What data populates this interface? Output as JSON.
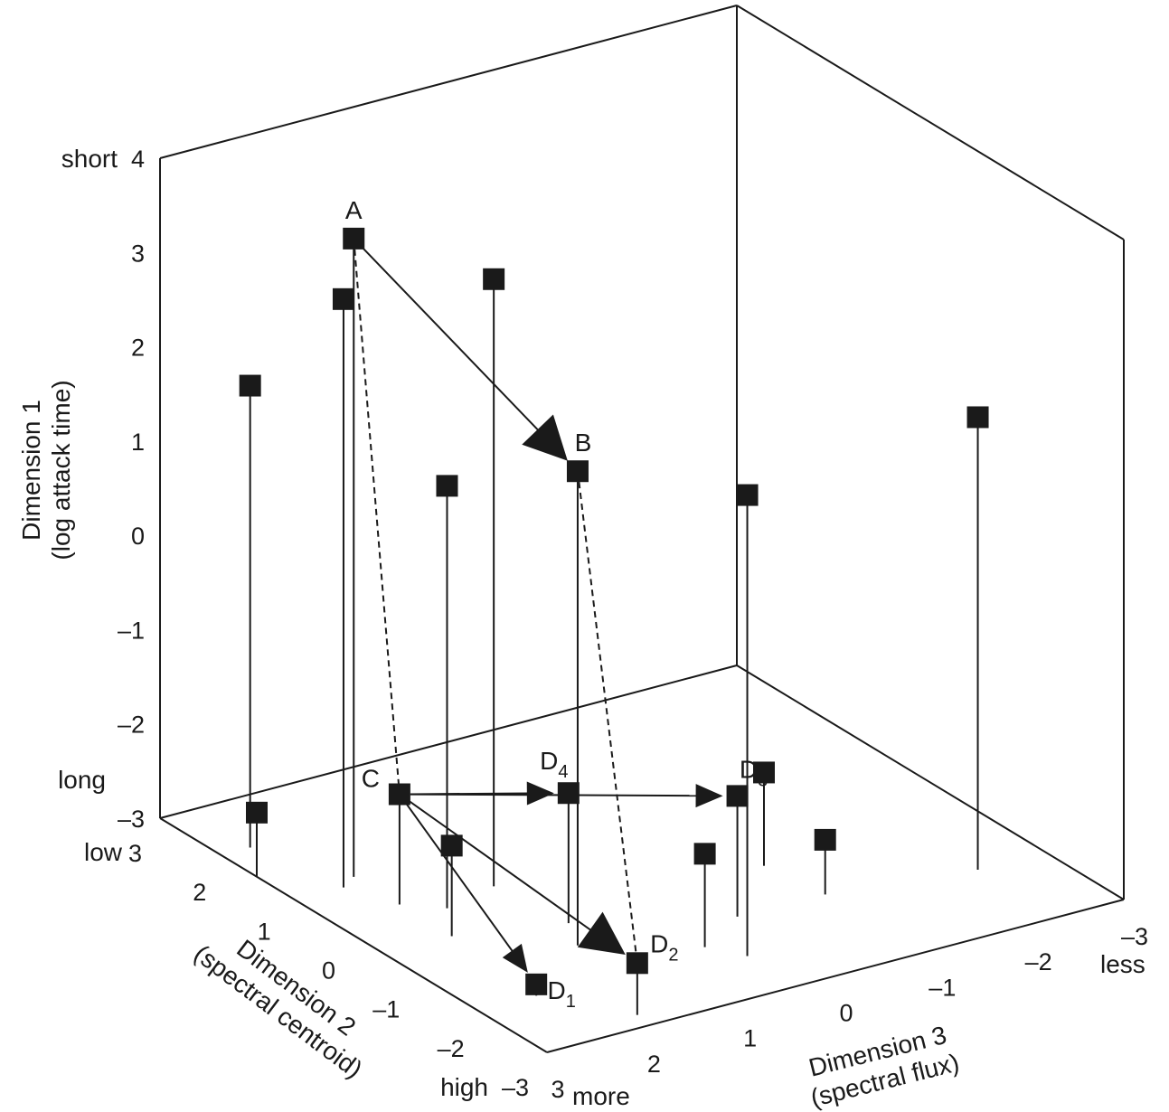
{
  "chart_data": {
    "type": "scatter",
    "projection": "3d",
    "grid": false,
    "axes": {
      "dim1": {
        "label_line1": "Dimension 1",
        "label_line2": "(log attack time)",
        "range": [
          -3,
          4
        ],
        "ticks": [
          "4",
          "3",
          "2",
          "1",
          "0",
          "–1",
          "–2",
          "–3"
        ],
        "end_high": "short",
        "end_low": "long"
      },
      "dim2": {
        "label_line1": "Dimension 2",
        "label_line2": "(spectral centroid)",
        "range": [
          -3,
          3
        ],
        "ticks": [
          "3",
          "2",
          "1",
          "0",
          "–1",
          "–2",
          "–3"
        ],
        "end_high": "low",
        "end_low": "high"
      },
      "dim3": {
        "label_line1": "Dimension 3",
        "label_line2": "(spectral flux)",
        "range": [
          -3,
          3
        ],
        "ticks": [
          "3",
          "2",
          "1",
          "0",
          "–1",
          "–2",
          "–3"
        ],
        "end_high": "more",
        "end_low": "less"
      }
    },
    "points": [
      {
        "label": "A",
        "sub": "",
        "dim1": 3.77,
        "dim2": 1.04,
        "dim3": 2.3
      },
      {
        "label": "B",
        "sub": "",
        "dim1": 2.03,
        "dim2": -1.24,
        "dim3": 1.5
      },
      {
        "label": "C",
        "sub": "",
        "dim1": -1.83,
        "dim2": 0.33,
        "dim3": 2.3
      },
      {
        "label": "D",
        "sub": "1",
        "dim1": -2.88,
        "dim2": -1.94,
        "dim3": 2.4
      },
      {
        "label": "D",
        "sub": "2",
        "dim1": -2.45,
        "dim2": -2.76,
        "dim3": 1.9
      },
      {
        "label": "D",
        "sub": "3",
        "dim1": -1.72,
        "dim2": -1.48,
        "dim3": 0.0
      },
      {
        "label": "D",
        "sub": "4",
        "dim1": -1.62,
        "dim2": -0.8,
        "dim3": 1.3
      },
      {
        "label": "",
        "sub": "",
        "dim1": 3.24,
        "dim2": 0.9,
        "dim3": 2.5
      },
      {
        "label": "",
        "sub": "",
        "dim1": 3.44,
        "dim2": 0.21,
        "dim3": 1.4
      },
      {
        "label": "",
        "sub": "",
        "dim1": 1.9,
        "dim2": 2.05,
        "dim3": 2.7
      },
      {
        "label": "",
        "sub": "",
        "dim1": 1.48,
        "dim2": 0.04,
        "dim3": 2.0
      },
      {
        "label": "",
        "sub": "",
        "dim1": 1.89,
        "dim2": -2.23,
        "dim3": 0.4
      },
      {
        "label": "",
        "sub": "",
        "dim1": 1.8,
        "dim2": -1.78,
        "dim3": -2.3
      },
      {
        "label": "",
        "sub": "",
        "dim1": -2.32,
        "dim2": 1.5,
        "dim3": 3.0
      },
      {
        "label": "",
        "sub": "",
        "dim1": -2.04,
        "dim2": -0.48,
        "dim3": 2.3
      },
      {
        "label": "",
        "sub": "",
        "dim1": -2.01,
        "dim2": -1.87,
        "dim3": 0.6
      },
      {
        "label": "",
        "sub": "",
        "dim1": -2.01,
        "dim2": -0.7,
        "dim3": -0.8
      },
      {
        "label": "",
        "sub": "",
        "dim1": -2.42,
        "dim2": -1.5,
        "dim3": -0.9
      }
    ],
    "arrows": [
      {
        "from": 0,
        "to": 1,
        "style": "solid",
        "head": "large"
      },
      {
        "from": 2,
        "to": 3,
        "style": "solid",
        "head": "small"
      },
      {
        "from": 2,
        "to": 4,
        "style": "solid",
        "head": "large"
      },
      {
        "from": 2,
        "to": 5,
        "style": "solid",
        "head": "small"
      },
      {
        "from": 2,
        "to": 6,
        "style": "solid",
        "head": "small"
      },
      {
        "from": 0,
        "to": 2,
        "style": "dashed",
        "head": "none"
      },
      {
        "from": 1,
        "to": 4,
        "style": "dashed",
        "head": "none"
      }
    ]
  }
}
